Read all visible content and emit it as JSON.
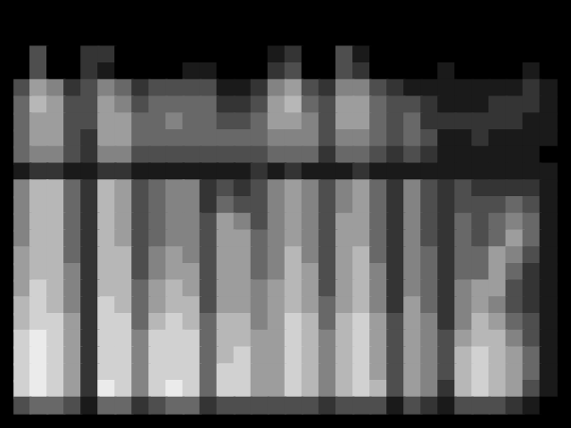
{
  "chart_data": {
    "type": "heatmap",
    "tick_labels": false,
    "zlim": [
      0,
      9
    ],
    "cells": [
      [
        0,
        0,
        0,
        0,
        0,
        0,
        0,
        0,
        0,
        0,
        0,
        0,
        0,
        0,
        0,
        0,
        0,
        0,
        0,
        0,
        0,
        0,
        0,
        0,
        0,
        0,
        0,
        0,
        0,
        0,
        0,
        0
      ],
      [
        0,
        0,
        0,
        0,
        0,
        0,
        0,
        0,
        0,
        0,
        0,
        0,
        0,
        0,
        0,
        0,
        0,
        0,
        0,
        0,
        0,
        0,
        0,
        0,
        0,
        0,
        0,
        0,
        0,
        0,
        0,
        0
      ],
      [
        0,
        3,
        0,
        0,
        2,
        2,
        0,
        0,
        0,
        0,
        0,
        0,
        0,
        0,
        0,
        1,
        2,
        0,
        0,
        3,
        1,
        0,
        0,
        0,
        0,
        0,
        0,
        0,
        0,
        0,
        0,
        0
      ],
      [
        0,
        3,
        0,
        0,
        2,
        1,
        0,
        0,
        0,
        0,
        1,
        1,
        0,
        0,
        0,
        2,
        3,
        0,
        0,
        3,
        2,
        0,
        0,
        0,
        0,
        1,
        0,
        0,
        0,
        0,
        1,
        0
      ],
      [
        3,
        6,
        5,
        2,
        3,
        5,
        4,
        2,
        3,
        3,
        3,
        3,
        1,
        1,
        2,
        5,
        6,
        3,
        2,
        5,
        5,
        3,
        2,
        1,
        1,
        1,
        1,
        1,
        1,
        1,
        2,
        1
      ],
      [
        4,
        7,
        6,
        3,
        3,
        6,
        5,
        3,
        4,
        4,
        4,
        4,
        2,
        2,
        3,
        6,
        7,
        4,
        3,
        6,
        6,
        4,
        3,
        3,
        2,
        1,
        1,
        1,
        2,
        2,
        2,
        1
      ],
      [
        4,
        6,
        6,
        3,
        3,
        6,
        6,
        4,
        4,
        5,
        4,
        4,
        3,
        3,
        4,
        6,
        6,
        5,
        3,
        6,
        6,
        4,
        3,
        4,
        2,
        2,
        2,
        2,
        2,
        2,
        1,
        1
      ],
      [
        4,
        6,
        6,
        3,
        2,
        6,
        6,
        4,
        4,
        4,
        4,
        4,
        4,
        4,
        4,
        5,
        5,
        5,
        3,
        5,
        5,
        4,
        3,
        4,
        3,
        1,
        1,
        2,
        1,
        1,
        1,
        1
      ],
      [
        4,
        5,
        5,
        3,
        2,
        5,
        5,
        3,
        3,
        3,
        3,
        3,
        3,
        3,
        3,
        4,
        4,
        4,
        2,
        4,
        4,
        3,
        2,
        3,
        2,
        1,
        1,
        1,
        1,
        1,
        1,
        0
      ],
      [
        1,
        2,
        2,
        1,
        1,
        2,
        2,
        1,
        1,
        1,
        1,
        1,
        1,
        1,
        2,
        1,
        2,
        1,
        1,
        1,
        2,
        1,
        1,
        1,
        1,
        1,
        1,
        1,
        1,
        1,
        1,
        1
      ],
      [
        5,
        7,
        7,
        4,
        2,
        7,
        6,
        3,
        4,
        5,
        5,
        2,
        3,
        2,
        3,
        5,
        6,
        5,
        3,
        5,
        6,
        4,
        2,
        5,
        3,
        2,
        3,
        2,
        2,
        2,
        2,
        1
      ],
      [
        5,
        7,
        7,
        4,
        2,
        7,
        6,
        3,
        4,
        5,
        5,
        2,
        4,
        3,
        3,
        5,
        6,
        5,
        3,
        5,
        6,
        4,
        2,
        5,
        3,
        2,
        3,
        3,
        3,
        4,
        3,
        1
      ],
      [
        5,
        7,
        7,
        4,
        2,
        7,
        6,
        3,
        4,
        5,
        5,
        3,
        6,
        5,
        3,
        5,
        6,
        5,
        3,
        6,
        6,
        4,
        2,
        5,
        3,
        2,
        4,
        3,
        4,
        5,
        4,
        1
      ],
      [
        5,
        7,
        7,
        4,
        2,
        7,
        6,
        3,
        4,
        5,
        5,
        3,
        6,
        6,
        4,
        5,
        6,
        5,
        3,
        6,
        6,
        4,
        2,
        5,
        3,
        2,
        4,
        3,
        4,
        6,
        4,
        1
      ],
      [
        6,
        7,
        7,
        4,
        2,
        7,
        7,
        3,
        5,
        6,
        5,
        3,
        6,
        6,
        4,
        5,
        7,
        5,
        3,
        6,
        7,
        4,
        2,
        5,
        4,
        2,
        4,
        4,
        6,
        5,
        3,
        1
      ],
      [
        6,
        7,
        7,
        5,
        2,
        7,
        7,
        3,
        5,
        6,
        6,
        3,
        6,
        6,
        4,
        5,
        7,
        6,
        3,
        6,
        7,
        5,
        2,
        5,
        4,
        2,
        4,
        4,
        6,
        4,
        2,
        1
      ],
      [
        6,
        8,
        7,
        5,
        2,
        7,
        7,
        4,
        6,
        7,
        6,
        3,
        6,
        6,
        5,
        6,
        7,
        6,
        3,
        6,
        7,
        5,
        2,
        5,
        4,
        2,
        5,
        6,
        6,
        3,
        2,
        1
      ],
      [
        7,
        8,
        7,
        5,
        2,
        8,
        7,
        4,
        6,
        7,
        7,
        3,
        6,
        6,
        5,
        6,
        7,
        6,
        4,
        6,
        7,
        5,
        2,
        6,
        4,
        2,
        5,
        6,
        5,
        3,
        2,
        1
      ],
      [
        7,
        8,
        8,
        6,
        2,
        8,
        8,
        4,
        7,
        8,
        7,
        4,
        7,
        7,
        5,
        6,
        8,
        7,
        4,
        7,
        8,
        6,
        3,
        6,
        5,
        2,
        5,
        7,
        6,
        4,
        3,
        1
      ],
      [
        8,
        9,
        8,
        6,
        2,
        8,
        8,
        5,
        8,
        8,
        8,
        4,
        7,
        7,
        6,
        6,
        8,
        7,
        5,
        7,
        8,
        6,
        3,
        6,
        5,
        3,
        6,
        7,
        7,
        5,
        3,
        1
      ],
      [
        8,
        9,
        8,
        6,
        2,
        8,
        8,
        5,
        8,
        8,
        8,
        4,
        7,
        8,
        6,
        6,
        8,
        7,
        5,
        7,
        8,
        6,
        3,
        6,
        5,
        3,
        7,
        8,
        7,
        6,
        4,
        1
      ],
      [
        8,
        9,
        8,
        6,
        2,
        8,
        8,
        5,
        8,
        8,
        8,
        4,
        8,
        8,
        6,
        6,
        8,
        7,
        5,
        7,
        8,
        6,
        3,
        6,
        5,
        3,
        7,
        8,
        7,
        6,
        4,
        1
      ],
      [
        8,
        9,
        8,
        6,
        2,
        9,
        8,
        5,
        8,
        9,
        8,
        4,
        8,
        8,
        6,
        6,
        8,
        7,
        5,
        7,
        8,
        7,
        3,
        6,
        5,
        2,
        7,
        8,
        7,
        6,
        3,
        1
      ],
      [
        3,
        4,
        4,
        3,
        1,
        4,
        4,
        2,
        3,
        4,
        4,
        2,
        3,
        3,
        3,
        3,
        3,
        3,
        2,
        3,
        3,
        3,
        1,
        3,
        2,
        1,
        3,
        3,
        3,
        2,
        1,
        0
      ]
    ]
  }
}
